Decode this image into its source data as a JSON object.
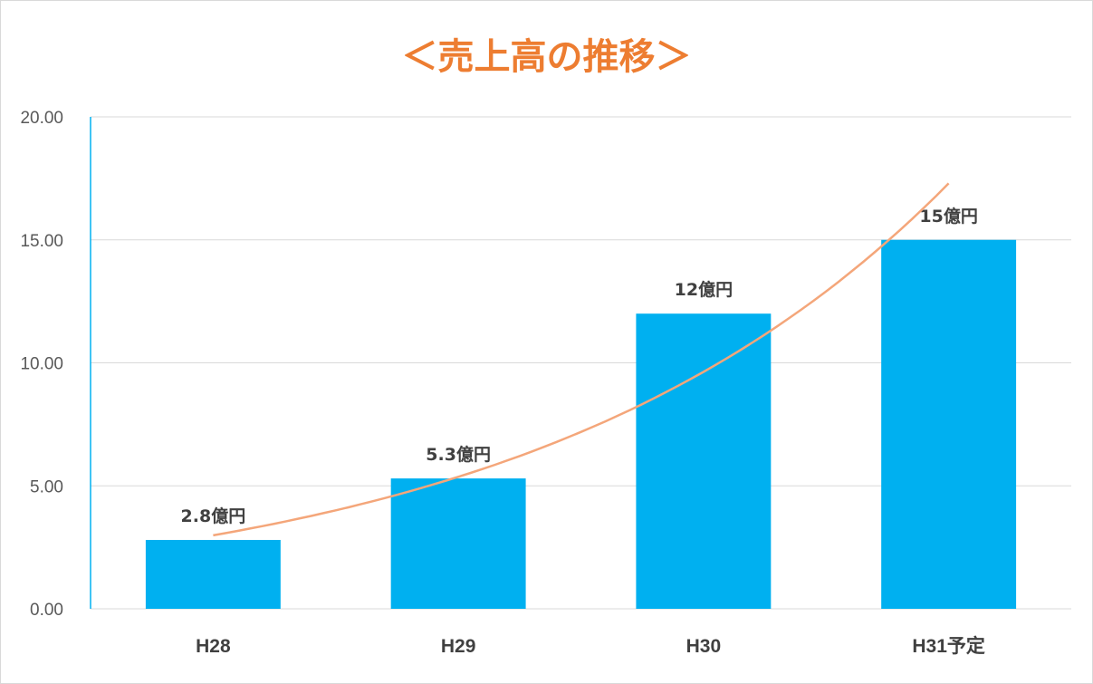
{
  "chart_data": {
    "type": "bar",
    "title": "＜売上高の推移＞",
    "categories": [
      "H28",
      "H29",
      "H30",
      "H31予定"
    ],
    "values": [
      2.8,
      5.3,
      12,
      15
    ],
    "data_labels": [
      "2.8億円",
      "5.3億円",
      "12億円",
      "15億円"
    ],
    "ylim": [
      0,
      20
    ],
    "yticks": [
      "0.00",
      "5.00",
      "10.00",
      "15.00",
      "20.00"
    ],
    "trendline": {
      "type": "exponential",
      "color": "#f4a67a"
    },
    "grid": true,
    "legend": "none",
    "bar_color": "#00b0f0",
    "title_color": "#ed7d31"
  }
}
